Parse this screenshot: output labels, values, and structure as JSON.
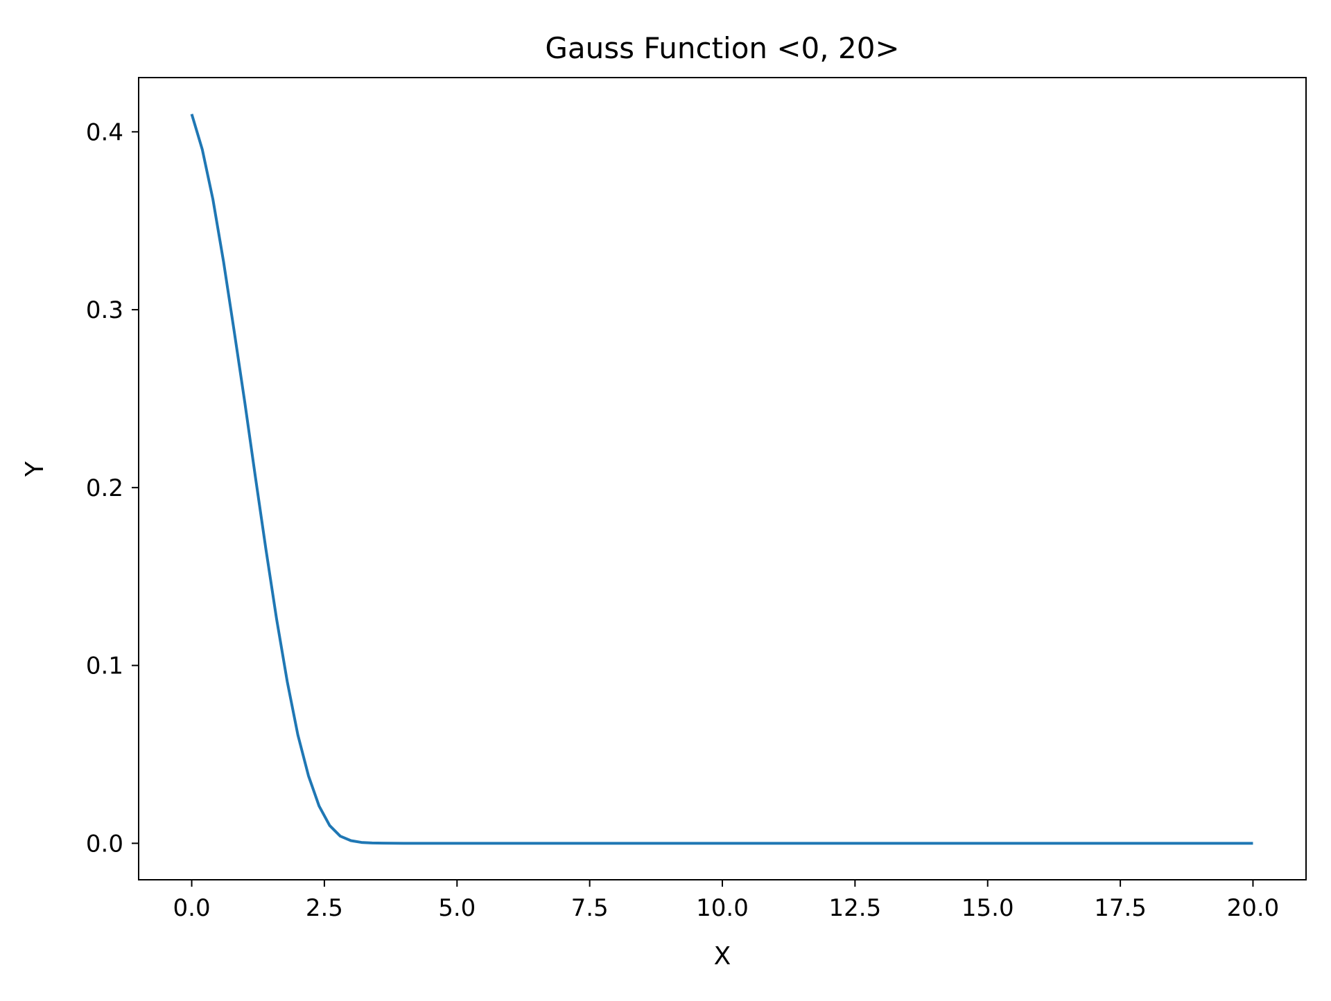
{
  "chart_data": {
    "type": "line",
    "title": "Gauss Function <0, 20>",
    "xlabel": "X",
    "ylabel": "Y",
    "xlim": [
      -1,
      21
    ],
    "ylim": [
      -0.0205,
      0.4305
    ],
    "xticks": [
      0,
      2.5,
      5,
      7.5,
      10,
      12.5,
      15,
      17.5,
      20
    ],
    "xtick_labels": [
      "0.0",
      "2.5",
      "5.0",
      "7.5",
      "10.0",
      "12.5",
      "15.0",
      "17.5",
      "20.0"
    ],
    "yticks": [
      0,
      0.1,
      0.2,
      0.3,
      0.4
    ],
    "ytick_labels": [
      "0.0",
      "0.1",
      "0.2",
      "0.3",
      "0.4"
    ],
    "grid": false,
    "series": [
      {
        "color": "#1f77b4",
        "x": [
          0,
          0.2,
          0.4,
          0.6,
          0.8,
          1.0,
          1.2,
          1.4,
          1.6,
          1.8,
          2.0,
          2.2,
          2.4,
          2.6,
          2.8,
          3.0,
          3.2,
          3.4,
          3.6,
          3.8,
          4.0,
          5.0,
          6.0,
          8.0,
          10.0,
          12.0,
          14.0,
          16.0,
          18.0,
          20.0
        ],
        "y": [
          0.41,
          0.39,
          0.362,
          0.327,
          0.288,
          0.248,
          0.206,
          0.165,
          0.126,
          0.091,
          0.061,
          0.038,
          0.021,
          0.01,
          0.004,
          0.0015,
          0.0005,
          0.0002,
          0.0001,
          3e-05,
          1e-05,
          0,
          0,
          0,
          0,
          0,
          0,
          0,
          0,
          0
        ]
      }
    ]
  }
}
